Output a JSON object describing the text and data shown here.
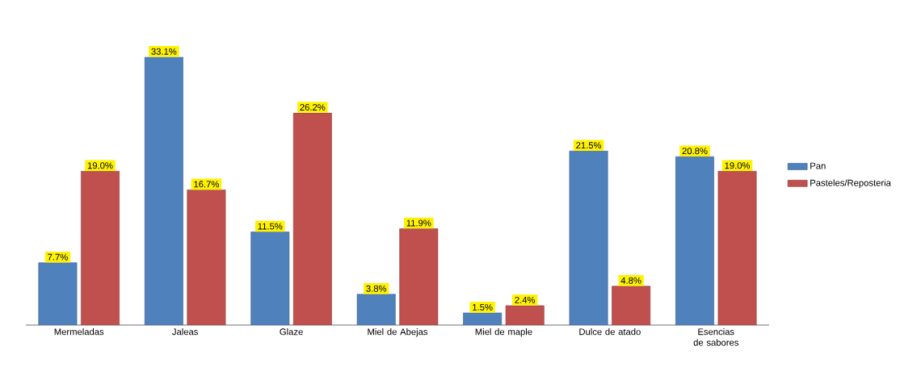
{
  "chart_data": {
    "type": "bar",
    "categories": [
      "Mermeladas",
      "Jaleas",
      "Glaze",
      "Miel de Abejas",
      "Miel de maple",
      "Dulce de atado",
      "Esencias de sabores"
    ],
    "series": [
      {
        "name": "Pan",
        "color": "#4f81bd",
        "values": [
          7.7,
          33.1,
          11.5,
          3.8,
          1.5,
          21.5,
          20.8
        ],
        "value_labels": [
          "7.7%",
          "33.1%",
          "11.5%",
          "3.8%",
          "1.5%",
          "21.5%",
          "20.8%"
        ]
      },
      {
        "name": "Pasteles/Reposteria",
        "color": "#c0504d",
        "values": [
          19.0,
          16.7,
          26.2,
          11.9,
          2.4,
          4.8,
          19.0
        ],
        "value_labels": [
          "19.0%",
          "16.7%",
          "26.2%",
          "11.9%",
          "2.4%",
          "4.8%",
          "19.0%"
        ]
      }
    ],
    "legend": "right"
  }
}
